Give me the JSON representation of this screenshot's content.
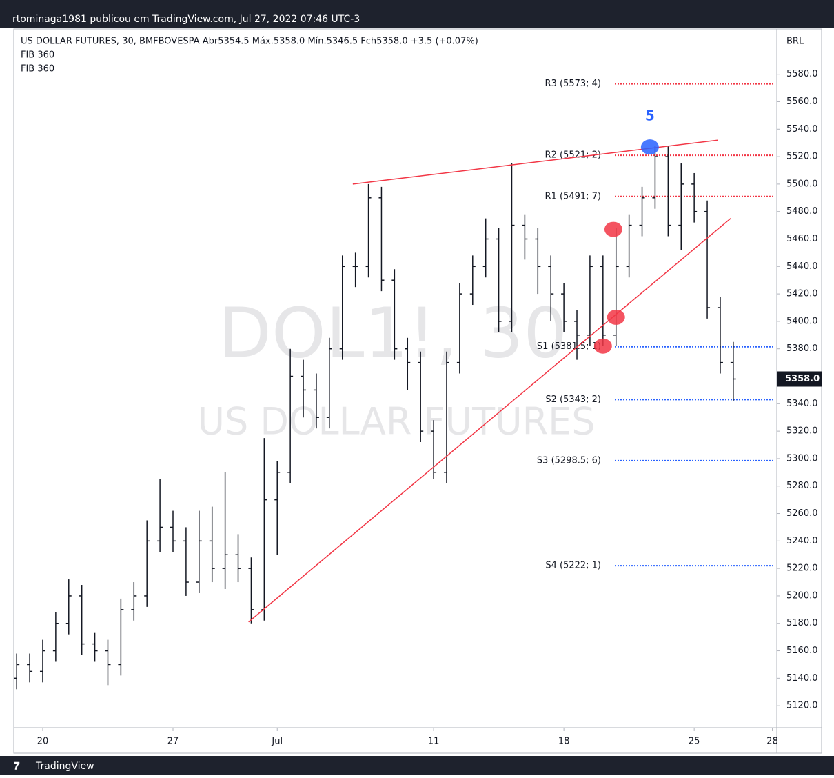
{
  "header": "rtominaga1981 publicou em TradingView.com, Jul 27, 2022 07:46 UTC-3",
  "footer": "TradingView",
  "chart_data": {
    "type": "ohlc",
    "legend": [
      "US DOLLAR FUTURES, 30, BMFBOVESPA  Abr5354.5  Máx.5358.0  Mín.5346.5  Fch5358.0  +3.5 (+0.07%)",
      "FIB 360",
      "FIB 360"
    ],
    "watermark": [
      "DOL1!, 30",
      "US DOLLAR FUTURES"
    ],
    "currency": "BRL",
    "last_price": {
      "value": 5358,
      "label": "5358.0"
    },
    "x": [
      -1,
      -0.5,
      0,
      0.5,
      1,
      1.5,
      2,
      2.5,
      3,
      3.5,
      4,
      4.5,
      5,
      5.5,
      6,
      6.5,
      7,
      7.5,
      8,
      8.5,
      9,
      9.5,
      10,
      10.5,
      11,
      11.5,
      12,
      12.5,
      13,
      13.5,
      14,
      14.5,
      15,
      15.5,
      16,
      16.5,
      17,
      17.5,
      18,
      18.5,
      19,
      19.5,
      20,
      20.5,
      21,
      21.5,
      22,
      22.5,
      23,
      23.5,
      24,
      24.5,
      25,
      25.5,
      26,
      26.5
    ],
    "open": [
      5140,
      5150,
      5145,
      5160,
      5180,
      5200,
      5165,
      5160,
      5150,
      5190,
      5200,
      5240,
      5250,
      5240,
      5210,
      5240,
      5220,
      5230,
      5220,
      5190,
      5270,
      5290,
      5360,
      5350,
      5330,
      5380,
      5440,
      5440,
      5490,
      5430,
      5380,
      5370,
      5320,
      5290,
      5370,
      5420,
      5440,
      5460,
      5400,
      5470,
      5460,
      5440,
      5420,
      5400,
      5390,
      5440,
      5390,
      5440,
      5470,
      5490,
      5520,
      5470,
      5500,
      5480,
      5410,
      5370
    ],
    "high": [
      5158,
      5158,
      5168,
      5188,
      5212,
      5208,
      5173,
      5168,
      5198,
      5210,
      5255,
      5285,
      5262,
      5250,
      5262,
      5265,
      5290,
      5245,
      5228,
      5315,
      5298,
      5380,
      5372,
      5362,
      5388,
      5448,
      5450,
      5500,
      5498,
      5438,
      5388,
      5378,
      5328,
      5378,
      5428,
      5448,
      5475,
      5468,
      5515,
      5478,
      5468,
      5448,
      5428,
      5408,
      5448,
      5448,
      5468,
      5478,
      5498,
      5528,
      5528,
      5515,
      5508,
      5488,
      5418,
      5385
    ],
    "low": [
      5132,
      5137,
      5137,
      5152,
      5172,
      5157,
      5152,
      5135,
      5142,
      5182,
      5192,
      5232,
      5232,
      5200,
      5202,
      5210,
      5205,
      5210,
      5180,
      5182,
      5230,
      5282,
      5330,
      5322,
      5322,
      5372,
      5425,
      5432,
      5422,
      5372,
      5350,
      5312,
      5285,
      5282,
      5362,
      5412,
      5432,
      5392,
      5392,
      5445,
      5420,
      5400,
      5392,
      5372,
      5382,
      5382,
      5382,
      5432,
      5462,
      5482,
      5462,
      5452,
      5472,
      5402,
      5362,
      5342
    ],
    "close": [
      5150,
      5145,
      5160,
      5180,
      5200,
      5165,
      5160,
      5150,
      5190,
      5200,
      5240,
      5250,
      5240,
      5210,
      5240,
      5220,
      5230,
      5220,
      5190,
      5270,
      5290,
      5360,
      5350,
      5330,
      5380,
      5440,
      5440,
      5490,
      5430,
      5380,
      5370,
      5320,
      5290,
      5370,
      5420,
      5440,
      5460,
      5400,
      5470,
      5460,
      5440,
      5420,
      5400,
      5390,
      5440,
      5390,
      5440,
      5470,
      5490,
      5520,
      5470,
      5500,
      5480,
      5410,
      5370,
      5358
    ],
    "color": "#131722",
    "xlim": [
      -1.11,
      28.17
    ],
    "ylim": [
      5104,
      5613
    ],
    "xticks": [
      {
        "value": 0,
        "label": "20"
      },
      {
        "value": 5,
        "label": "27"
      },
      {
        "value": 9,
        "label": "Jul"
      },
      {
        "value": 15,
        "label": "11"
      },
      {
        "value": 20,
        "label": "18"
      },
      {
        "value": 25,
        "label": "25"
      },
      {
        "value": 28,
        "label": "28"
      }
    ],
    "yticks": [
      {
        "value": 5120,
        "label": "5120.0"
      },
      {
        "value": 5140,
        "label": "5140.0"
      },
      {
        "value": 5160,
        "label": "5160.0"
      },
      {
        "value": 5180,
        "label": "5180.0"
      },
      {
        "value": 5200,
        "label": "5200.0"
      },
      {
        "value": 5220,
        "label": "5220.0"
      },
      {
        "value": 5240,
        "label": "5240.0"
      },
      {
        "value": 5260,
        "label": "5260.0"
      },
      {
        "value": 5280,
        "label": "5280.0"
      },
      {
        "value": 5300,
        "label": "5300.0"
      },
      {
        "value": 5320,
        "label": "5320.0"
      },
      {
        "value": 5340,
        "label": "5340.0"
      },
      {
        "value": 5360,
        "label": "5360.0"
      },
      {
        "value": 5380,
        "label": "5380.0"
      },
      {
        "value": 5400,
        "label": "5400.0"
      },
      {
        "value": 5420,
        "label": "5420.0"
      },
      {
        "value": 5440,
        "label": "5440.0"
      },
      {
        "value": 5460,
        "label": "5460.0"
      },
      {
        "value": 5480,
        "label": "5480.0"
      },
      {
        "value": 5500,
        "label": "5500.0"
      },
      {
        "value": 5520,
        "label": "5520.0"
      },
      {
        "value": 5540,
        "label": "5540.0"
      },
      {
        "value": 5560,
        "label": "5560.0"
      },
      {
        "value": 5580,
        "label": "5580.0"
      }
    ],
    "levels": [
      {
        "label": "R3 (5573; 4)",
        "value": 5573,
        "color": "#f23645"
      },
      {
        "label": "R2 (5521; 2)",
        "value": 5521,
        "color": "#f23645"
      },
      {
        "label": "R1 (5491; 7)",
        "value": 5491,
        "color": "#f23645"
      },
      {
        "label": "S1 (5381.5; 1)",
        "value": 5381.5,
        "color": "#2962ff"
      },
      {
        "label": "S2 (5343; 2)",
        "value": 5343,
        "color": "#2962ff"
      },
      {
        "label": "S3 (5298.5; 6)",
        "value": 5298.5,
        "color": "#2962ff"
      },
      {
        "label": "S4 (5222; 1)",
        "value": 5222,
        "color": "#2962ff"
      }
    ],
    "trendlines": [
      {
        "x": [
          11.9,
          25.9
        ],
        "y": [
          5500,
          5532
        ],
        "color": "#f23645"
      },
      {
        "x": [
          7.9,
          26.4
        ],
        "y": [
          5181,
          5475
        ],
        "color": "#f23645"
      }
    ],
    "markers": [
      {
        "x": 23.3,
        "y": 5527,
        "color": "#2962ff"
      },
      {
        "x": 21.9,
        "y": 5467,
        "color": "#f23645"
      },
      {
        "x": 22,
        "y": 5403,
        "color": "#f23645"
      },
      {
        "x": 21.5,
        "y": 5382,
        "color": "#f23645"
      }
    ],
    "wave_label": "5"
  }
}
